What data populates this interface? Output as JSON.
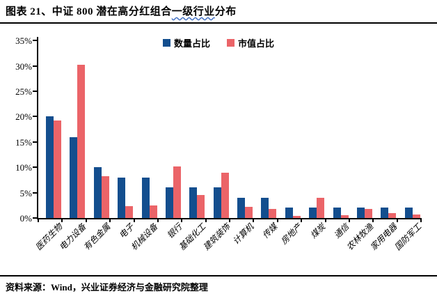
{
  "header": {
    "title_prefix": "图表 21、中证 800 潜在高分红组合",
    "title_wavy": "一级行业",
    "title_suffix": "分布"
  },
  "footer": {
    "source": "资料来源：Wind，兴业证券经济与金融研究院整理"
  },
  "colors": {
    "series_count": "#134E8E",
    "series_mcap": "#EB6468",
    "axis": "#000000",
    "wavy_underline": "#4472C4"
  },
  "chart_data": {
    "type": "bar",
    "title": "图表 21、中证 800 潜在高分红组合一级行业分布",
    "categories": [
      "医药生物",
      "电力设备",
      "有色金属",
      "电子",
      "机械设备",
      "银行",
      "基础化工",
      "建筑装饰",
      "计算机",
      "传媒",
      "房地产",
      "煤炭",
      "通信",
      "农林牧渔",
      "家用电器",
      "国防军工"
    ],
    "series": [
      {
        "name": "数量占比",
        "color": "#134E8E",
        "values": [
          20,
          16,
          10,
          8,
          8,
          6,
          6,
          6,
          4,
          4,
          2,
          2,
          2,
          2,
          2,
          2
        ]
      },
      {
        "name": "市值占比",
        "color": "#EB6468",
        "values": [
          19.2,
          30.3,
          8.3,
          2.3,
          2.5,
          10.2,
          4.6,
          8.9,
          2.2,
          1.8,
          0.4,
          4.0,
          0.5,
          1.8,
          1.0,
          0.7
        ]
      }
    ],
    "ylabel": "",
    "xlabel": "",
    "ylim": [
      0,
      35
    ],
    "y_tick_step": 5,
    "y_ticks": [
      "0%",
      "5%",
      "10%",
      "15%",
      "20%",
      "25%",
      "30%",
      "35%"
    ],
    "unit": "%",
    "grid": false,
    "legend_position": "top-center"
  }
}
